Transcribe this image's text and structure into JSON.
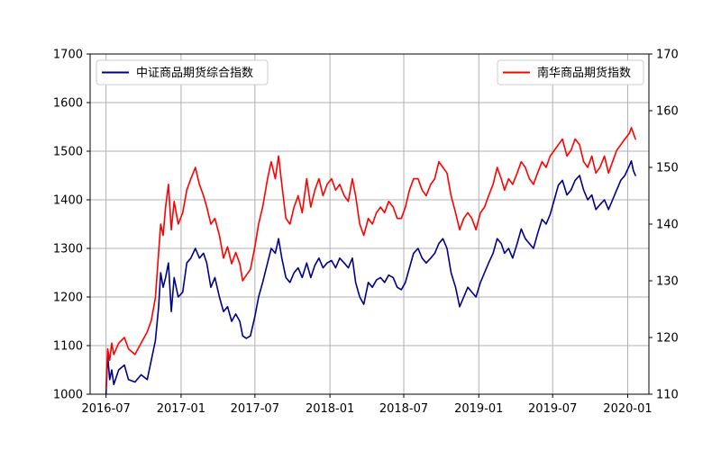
{
  "chart_data": {
    "type": "line",
    "title": "",
    "xlabel": "",
    "ylabel": "",
    "x_axis": {
      "type": "date",
      "range": [
        "2016-05-23",
        "2020-02-22"
      ],
      "ticks": [
        "2016-07",
        "2017-01",
        "2017-07",
        "2018-01",
        "2018-07",
        "2019-01",
        "2019-07",
        "2020-01"
      ]
    },
    "y_left": {
      "range": [
        1000,
        1700
      ],
      "ticks": [
        1000,
        1100,
        1200,
        1300,
        1400,
        1500,
        1600,
        1700
      ]
    },
    "y_right": {
      "range": [
        110,
        170
      ],
      "ticks": [
        110,
        120,
        130,
        140,
        150,
        160,
        170
      ]
    },
    "grid": true,
    "series": [
      {
        "name": "中证商品期货综合指数",
        "axis": "left",
        "color": "#00008b",
        "legend_position": "top-left",
        "points": [
          [
            "2016-07-01",
            1000
          ],
          [
            "2016-07-05",
            1080
          ],
          [
            "2016-07-10",
            1030
          ],
          [
            "2016-07-15",
            1050
          ],
          [
            "2016-07-20",
            1020
          ],
          [
            "2016-08-01",
            1050
          ],
          [
            "2016-08-15",
            1060
          ],
          [
            "2016-08-25",
            1030
          ],
          [
            "2016-09-10",
            1025
          ],
          [
            "2016-09-25",
            1040
          ],
          [
            "2016-10-10",
            1030
          ],
          [
            "2016-10-20",
            1070
          ],
          [
            "2016-10-30",
            1110
          ],
          [
            "2016-11-07",
            1180
          ],
          [
            "2016-11-12",
            1250
          ],
          [
            "2016-11-18",
            1220
          ],
          [
            "2016-11-24",
            1240
          ],
          [
            "2016-12-01",
            1270
          ],
          [
            "2016-12-08",
            1170
          ],
          [
            "2016-12-15",
            1240
          ],
          [
            "2016-12-25",
            1200
          ],
          [
            "2017-01-05",
            1210
          ],
          [
            "2017-01-15",
            1270
          ],
          [
            "2017-01-25",
            1280
          ],
          [
            "2017-02-05",
            1300
          ],
          [
            "2017-02-15",
            1280
          ],
          [
            "2017-02-25",
            1290
          ],
          [
            "2017-03-05",
            1270
          ],
          [
            "2017-03-15",
            1220
          ],
          [
            "2017-03-25",
            1240
          ],
          [
            "2017-04-05",
            1200
          ],
          [
            "2017-04-15",
            1170
          ],
          [
            "2017-04-25",
            1180
          ],
          [
            "2017-05-05",
            1150
          ],
          [
            "2017-05-15",
            1165
          ],
          [
            "2017-05-25",
            1150
          ],
          [
            "2017-06-01",
            1120
          ],
          [
            "2017-06-10",
            1115
          ],
          [
            "2017-06-20",
            1120
          ],
          [
            "2017-07-01",
            1160
          ],
          [
            "2017-07-10",
            1200
          ],
          [
            "2017-07-20",
            1230
          ],
          [
            "2017-08-01",
            1270
          ],
          [
            "2017-08-10",
            1300
          ],
          [
            "2017-08-20",
            1290
          ],
          [
            "2017-08-28",
            1320
          ],
          [
            "2017-09-05",
            1280
          ],
          [
            "2017-09-15",
            1240
          ],
          [
            "2017-09-25",
            1230
          ],
          [
            "2017-10-05",
            1250
          ],
          [
            "2017-10-15",
            1260
          ],
          [
            "2017-10-25",
            1240
          ],
          [
            "2017-11-05",
            1270
          ],
          [
            "2017-11-15",
            1240
          ],
          [
            "2017-11-25",
            1265
          ],
          [
            "2017-12-05",
            1280
          ],
          [
            "2017-12-15",
            1260
          ],
          [
            "2017-12-25",
            1270
          ],
          [
            "2018-01-05",
            1275
          ],
          [
            "2018-01-15",
            1260
          ],
          [
            "2018-01-25",
            1280
          ],
          [
            "2018-02-05",
            1270
          ],
          [
            "2018-02-15",
            1260
          ],
          [
            "2018-02-25",
            1280
          ],
          [
            "2018-03-05",
            1230
          ],
          [
            "2018-03-15",
            1200
          ],
          [
            "2018-03-25",
            1185
          ],
          [
            "2018-04-05",
            1230
          ],
          [
            "2018-04-15",
            1220
          ],
          [
            "2018-04-25",
            1235
          ],
          [
            "2018-05-05",
            1240
          ],
          [
            "2018-05-15",
            1230
          ],
          [
            "2018-05-25",
            1245
          ],
          [
            "2018-06-05",
            1240
          ],
          [
            "2018-06-15",
            1220
          ],
          [
            "2018-06-25",
            1215
          ],
          [
            "2018-07-05",
            1230
          ],
          [
            "2018-07-15",
            1260
          ],
          [
            "2018-07-25",
            1290
          ],
          [
            "2018-08-05",
            1300
          ],
          [
            "2018-08-15",
            1280
          ],
          [
            "2018-08-25",
            1270
          ],
          [
            "2018-09-05",
            1280
          ],
          [
            "2018-09-15",
            1290
          ],
          [
            "2018-09-25",
            1310
          ],
          [
            "2018-10-05",
            1320
          ],
          [
            "2018-10-15",
            1300
          ],
          [
            "2018-10-25",
            1250
          ],
          [
            "2018-11-05",
            1220
          ],
          [
            "2018-11-15",
            1180
          ],
          [
            "2018-11-25",
            1200
          ],
          [
            "2018-12-05",
            1220
          ],
          [
            "2018-12-15",
            1210
          ],
          [
            "2018-12-25",
            1200
          ],
          [
            "2019-01-05",
            1230
          ],
          [
            "2019-01-15",
            1250
          ],
          [
            "2019-01-25",
            1270
          ],
          [
            "2019-02-05",
            1290
          ],
          [
            "2019-02-15",
            1320
          ],
          [
            "2019-02-25",
            1310
          ],
          [
            "2019-03-05",
            1290
          ],
          [
            "2019-03-15",
            1300
          ],
          [
            "2019-03-25",
            1280
          ],
          [
            "2019-04-05",
            1310
          ],
          [
            "2019-04-15",
            1340
          ],
          [
            "2019-04-25",
            1320
          ],
          [
            "2019-05-05",
            1310
          ],
          [
            "2019-05-15",
            1300
          ],
          [
            "2019-05-25",
            1330
          ],
          [
            "2019-06-05",
            1360
          ],
          [
            "2019-06-15",
            1350
          ],
          [
            "2019-06-25",
            1370
          ],
          [
            "2019-07-05",
            1400
          ],
          [
            "2019-07-15",
            1430
          ],
          [
            "2019-07-25",
            1440
          ],
          [
            "2019-08-05",
            1410
          ],
          [
            "2019-08-15",
            1420
          ],
          [
            "2019-08-25",
            1440
          ],
          [
            "2019-09-05",
            1450
          ],
          [
            "2019-09-15",
            1420
          ],
          [
            "2019-09-25",
            1400
          ],
          [
            "2019-10-05",
            1410
          ],
          [
            "2019-10-15",
            1380
          ],
          [
            "2019-10-25",
            1390
          ],
          [
            "2019-11-05",
            1400
          ],
          [
            "2019-11-15",
            1380
          ],
          [
            "2019-11-25",
            1400
          ],
          [
            "2019-12-05",
            1420
          ],
          [
            "2019-12-15",
            1440
          ],
          [
            "2019-12-25",
            1450
          ],
          [
            "2020-01-05",
            1470
          ],
          [
            "2020-01-10",
            1480
          ],
          [
            "2020-01-15",
            1460
          ],
          [
            "2020-01-20",
            1450
          ]
        ]
      },
      {
        "name": "南华商品期货指数",
        "axis": "right",
        "color": "#ff0000",
        "legend_position": "top-right",
        "points": [
          [
            "2016-07-01",
            111
          ],
          [
            "2016-07-05",
            118
          ],
          [
            "2016-07-10",
            116
          ],
          [
            "2016-07-15",
            119
          ],
          [
            "2016-07-20",
            117
          ],
          [
            "2016-08-01",
            119
          ],
          [
            "2016-08-15",
            120
          ],
          [
            "2016-08-25",
            118
          ],
          [
            "2016-09-10",
            117
          ],
          [
            "2016-09-25",
            119
          ],
          [
            "2016-10-10",
            121
          ],
          [
            "2016-10-20",
            123
          ],
          [
            "2016-10-30",
            127
          ],
          [
            "2016-11-07",
            135
          ],
          [
            "2016-11-12",
            140
          ],
          [
            "2016-11-18",
            138
          ],
          [
            "2016-11-24",
            143
          ],
          [
            "2016-12-01",
            147
          ],
          [
            "2016-12-08",
            139
          ],
          [
            "2016-12-15",
            144
          ],
          [
            "2016-12-25",
            140
          ],
          [
            "2017-01-05",
            142
          ],
          [
            "2017-01-15",
            146
          ],
          [
            "2017-01-25",
            148
          ],
          [
            "2017-02-05",
            150
          ],
          [
            "2017-02-15",
            147
          ],
          [
            "2017-02-25",
            145
          ],
          [
            "2017-03-05",
            143
          ],
          [
            "2017-03-15",
            140
          ],
          [
            "2017-03-25",
            141
          ],
          [
            "2017-04-05",
            138
          ],
          [
            "2017-04-15",
            134
          ],
          [
            "2017-04-25",
            136
          ],
          [
            "2017-05-05",
            133
          ],
          [
            "2017-05-15",
            135
          ],
          [
            "2017-05-25",
            133
          ],
          [
            "2017-06-01",
            130
          ],
          [
            "2017-06-10",
            131
          ],
          [
            "2017-06-20",
            132
          ],
          [
            "2017-07-01",
            136
          ],
          [
            "2017-07-10",
            140
          ],
          [
            "2017-07-20",
            143
          ],
          [
            "2017-08-01",
            148
          ],
          [
            "2017-08-10",
            151
          ],
          [
            "2017-08-20",
            148
          ],
          [
            "2017-08-28",
            152
          ],
          [
            "2017-09-05",
            147
          ],
          [
            "2017-09-15",
            141
          ],
          [
            "2017-09-25",
            140
          ],
          [
            "2017-10-05",
            143
          ],
          [
            "2017-10-15",
            145
          ],
          [
            "2017-10-25",
            142
          ],
          [
            "2017-11-05",
            148
          ],
          [
            "2017-11-15",
            143
          ],
          [
            "2017-11-25",
            146
          ],
          [
            "2017-12-05",
            148
          ],
          [
            "2017-12-15",
            145
          ],
          [
            "2017-12-25",
            147
          ],
          [
            "2018-01-05",
            148
          ],
          [
            "2018-01-15",
            146
          ],
          [
            "2018-01-25",
            147
          ],
          [
            "2018-02-05",
            145
          ],
          [
            "2018-02-15",
            144
          ],
          [
            "2018-02-25",
            148
          ],
          [
            "2018-03-05",
            145
          ],
          [
            "2018-03-15",
            140
          ],
          [
            "2018-03-25",
            138
          ],
          [
            "2018-04-05",
            141
          ],
          [
            "2018-04-15",
            140
          ],
          [
            "2018-04-25",
            142
          ],
          [
            "2018-05-05",
            143
          ],
          [
            "2018-05-15",
            142
          ],
          [
            "2018-05-25",
            144
          ],
          [
            "2018-06-05",
            143
          ],
          [
            "2018-06-15",
            141
          ],
          [
            "2018-06-25",
            141
          ],
          [
            "2018-07-05",
            143
          ],
          [
            "2018-07-15",
            146
          ],
          [
            "2018-07-25",
            148
          ],
          [
            "2018-08-05",
            148
          ],
          [
            "2018-08-15",
            146
          ],
          [
            "2018-08-25",
            145
          ],
          [
            "2018-09-05",
            147
          ],
          [
            "2018-09-15",
            148
          ],
          [
            "2018-09-25",
            151
          ],
          [
            "2018-10-05",
            150
          ],
          [
            "2018-10-15",
            149
          ],
          [
            "2018-10-25",
            145
          ],
          [
            "2018-11-05",
            142
          ],
          [
            "2018-11-15",
            139
          ],
          [
            "2018-11-25",
            141
          ],
          [
            "2018-12-05",
            142
          ],
          [
            "2018-12-15",
            141
          ],
          [
            "2018-12-25",
            139
          ],
          [
            "2019-01-05",
            142
          ],
          [
            "2019-01-15",
            143
          ],
          [
            "2019-01-25",
            145
          ],
          [
            "2019-02-05",
            147
          ],
          [
            "2019-02-15",
            150
          ],
          [
            "2019-02-25",
            148
          ],
          [
            "2019-03-05",
            146
          ],
          [
            "2019-03-15",
            148
          ],
          [
            "2019-03-25",
            147
          ],
          [
            "2019-04-05",
            149
          ],
          [
            "2019-04-15",
            151
          ],
          [
            "2019-04-25",
            150
          ],
          [
            "2019-05-05",
            148
          ],
          [
            "2019-05-15",
            147
          ],
          [
            "2019-05-25",
            149
          ],
          [
            "2019-06-05",
            151
          ],
          [
            "2019-06-15",
            150
          ],
          [
            "2019-06-25",
            152
          ],
          [
            "2019-07-05",
            153
          ],
          [
            "2019-07-15",
            154
          ],
          [
            "2019-07-25",
            155
          ],
          [
            "2019-08-05",
            152
          ],
          [
            "2019-08-15",
            153
          ],
          [
            "2019-08-25",
            155
          ],
          [
            "2019-09-05",
            154
          ],
          [
            "2019-09-15",
            151
          ],
          [
            "2019-09-25",
            150
          ],
          [
            "2019-10-05",
            152
          ],
          [
            "2019-10-15",
            149
          ],
          [
            "2019-10-25",
            150
          ],
          [
            "2019-11-05",
            152
          ],
          [
            "2019-11-15",
            149
          ],
          [
            "2019-11-25",
            151
          ],
          [
            "2019-12-05",
            153
          ],
          [
            "2019-12-15",
            154
          ],
          [
            "2019-12-25",
            155
          ],
          [
            "2020-01-05",
            156
          ],
          [
            "2020-01-10",
            157
          ],
          [
            "2020-01-15",
            156
          ],
          [
            "2020-01-20",
            155
          ]
        ]
      }
    ]
  }
}
